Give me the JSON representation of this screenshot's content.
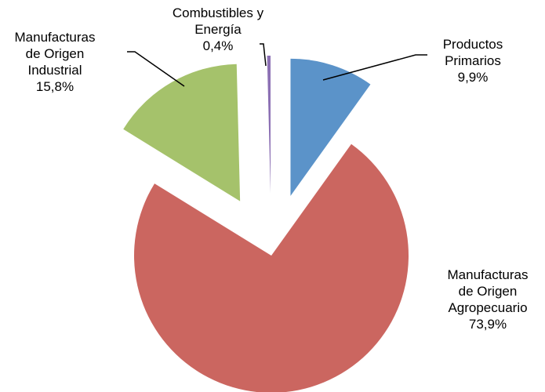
{
  "chart_data": {
    "type": "pie",
    "categories": [
      [
        "Productos",
        "Primarios"
      ],
      [
        "Manufacturas",
        "de Origen",
        "Agropecuario"
      ],
      [
        "Manufacturas",
        "de Origen",
        "Industrial"
      ],
      [
        "Combustibles y",
        "Energía"
      ]
    ],
    "values": [
      9.9,
      73.9,
      15.8,
      0.4
    ],
    "value_labels": [
      "9,9%",
      "73,9%",
      "15,8%",
      "0,4%"
    ],
    "colors": [
      "#5b93c9",
      "#cb6660",
      "#a5c26b",
      "#8c70b4"
    ],
    "explode": [
      true,
      false,
      true,
      true
    ]
  }
}
